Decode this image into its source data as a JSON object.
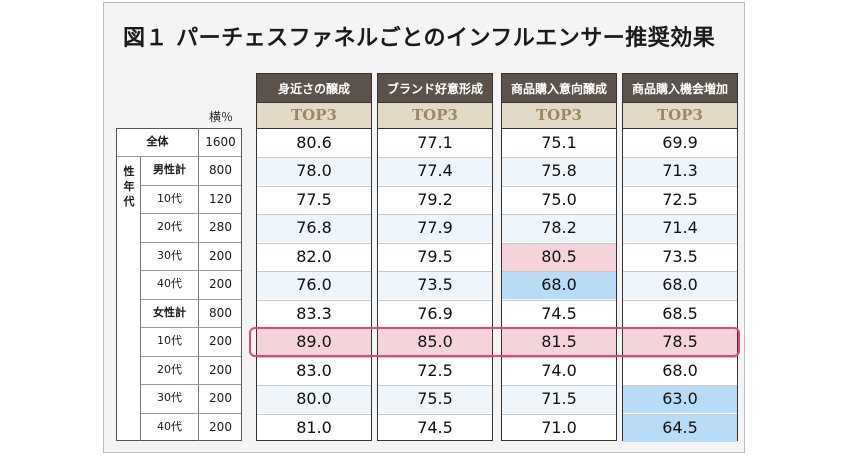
{
  "title": "図１ パーチェスファネルごとのインフルエンサー推奨効果",
  "unit_label": "横％",
  "group_label": "性年代",
  "colors": {
    "header_bg": "#5a524b",
    "subheader_bg": "#e2d9c7",
    "subheader_text": "#a0875f",
    "high_cell": "#f4d3db",
    "low_cell": "#b9dcf6",
    "highlight_border": "#e0457b"
  },
  "chart_data": {
    "type": "table",
    "title": "図１ パーチェスファネルごとのインフルエンサー推奨効果",
    "columns": [
      "身近さの醸成",
      "ブランド好意形成",
      "商品購入意向醸成",
      "商品購入機会増加"
    ],
    "subheader": "TOP3",
    "rows": [
      {
        "label": "全体",
        "n": "1600",
        "values": [
          "80.6",
          "77.1",
          "75.1",
          "69.9"
        ]
      },
      {
        "label": "男性計",
        "n": "800",
        "values": [
          "78.0",
          "77.4",
          "75.8",
          "71.3"
        ]
      },
      {
        "label": "10代",
        "n": "120",
        "values": [
          "77.5",
          "79.2",
          "75.0",
          "72.5"
        ]
      },
      {
        "label": "20代",
        "n": "280",
        "values": [
          "76.8",
          "77.9",
          "78.2",
          "71.4"
        ]
      },
      {
        "label": "30代",
        "n": "200",
        "values": [
          "82.0",
          "79.5",
          "80.5",
          "73.5"
        ]
      },
      {
        "label": "40代",
        "n": "200",
        "values": [
          "76.0",
          "73.5",
          "68.0",
          "68.0"
        ]
      },
      {
        "label": "女性計",
        "n": "800",
        "values": [
          "83.3",
          "76.9",
          "74.5",
          "68.5"
        ]
      },
      {
        "label": "10代",
        "n": "200",
        "values": [
          "89.0",
          "85.0",
          "81.5",
          "78.5"
        ]
      },
      {
        "label": "20代",
        "n": "200",
        "values": [
          "83.0",
          "72.5",
          "74.0",
          "68.0"
        ]
      },
      {
        "label": "30代",
        "n": "200",
        "values": [
          "80.0",
          "75.5",
          "71.5",
          "63.0"
        ]
      },
      {
        "label": "40代",
        "n": "200",
        "values": [
          "81.0",
          "74.5",
          "71.0",
          "64.5"
        ]
      }
    ],
    "cell_highlights": [
      {
        "row": 4,
        "col": 2,
        "tone": "high"
      },
      {
        "row": 5,
        "col": 2,
        "tone": "low"
      },
      {
        "row": 7,
        "col": 0,
        "tone": "high"
      },
      {
        "row": 7,
        "col": 1,
        "tone": "high"
      },
      {
        "row": 7,
        "col": 2,
        "tone": "high"
      },
      {
        "row": 7,
        "col": 3,
        "tone": "high"
      },
      {
        "row": 9,
        "col": 3,
        "tone": "low"
      },
      {
        "row": 10,
        "col": 3,
        "tone": "low"
      }
    ],
    "highlighted_row": 7
  }
}
